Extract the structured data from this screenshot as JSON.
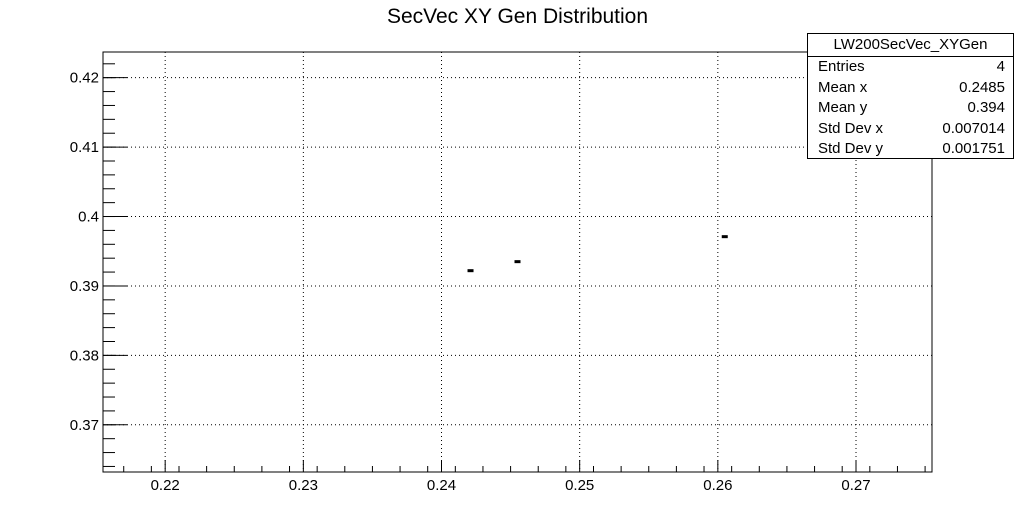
{
  "chart_data": {
    "type": "scatter",
    "title": "SecVec XY Gen Distribution",
    "xlabel": "",
    "ylabel": "",
    "xlim": [
      0.2155,
      0.2755
    ],
    "ylim": [
      0.3632,
      0.4237
    ],
    "grid": true,
    "x_ticks": [
      "0.22",
      "0.23",
      "0.24",
      "0.25",
      "0.26",
      "0.27"
    ],
    "y_ticks": [
      "0.37",
      "0.38",
      "0.39",
      "0.4",
      "0.41",
      "0.42"
    ],
    "points": [
      {
        "x": 0.2421,
        "y": 0.3922
      },
      {
        "x": 0.2455,
        "y": 0.3935
      },
      {
        "x": 0.2605,
        "y": 0.3971
      }
    ],
    "stats_box": {
      "name": "LW200SecVec_XYGen",
      "rows": [
        {
          "label": "Entries",
          "value": "4"
        },
        {
          "label": "Mean x",
          "value": "0.2485"
        },
        {
          "label": "Mean y",
          "value": "0.394"
        },
        {
          "label": "Std Dev x",
          "value": "0.007014"
        },
        {
          "label": "Std Dev y",
          "value": "0.001751"
        }
      ]
    }
  }
}
